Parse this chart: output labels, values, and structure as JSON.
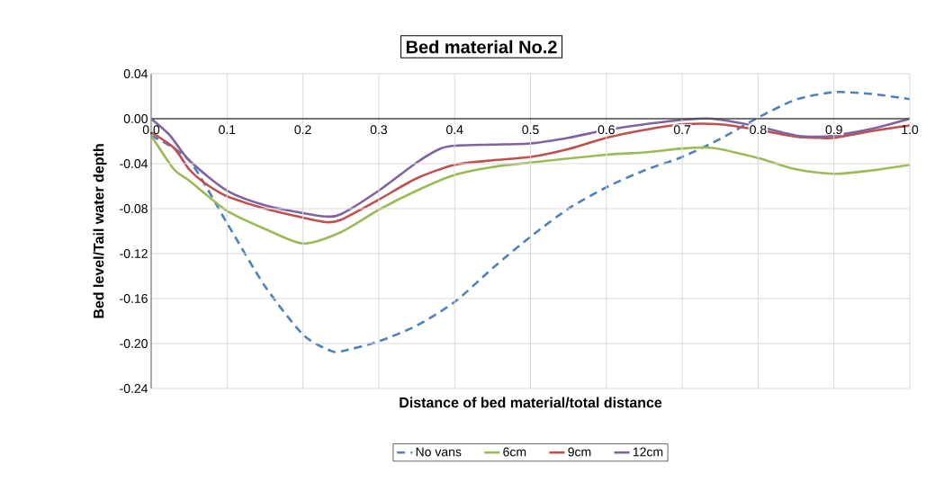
{
  "chart_data": {
    "type": "line",
    "title": "Bed material No.2",
    "xlabel": "Distance of bed material/total distance",
    "ylabel": "Bed level/Tail water depth",
    "xlim": [
      0,
      1
    ],
    "ylim": [
      -0.24,
      0.04
    ],
    "xticks": [
      {
        "value": 0,
        "label": "0.0"
      },
      0.1,
      0.2,
      0.3,
      0.4,
      0.5,
      0.6,
      0.7,
      0.8,
      0.9,
      {
        "value": 1,
        "label": "1.0"
      }
    ],
    "yticks": [
      {
        "value": 0.04,
        "label": "0.04"
      },
      {
        "value": 0,
        "label": "0.00"
      },
      {
        "value": -0.04,
        "label": "-0.04"
      },
      {
        "value": -0.08,
        "label": "-0.08"
      },
      {
        "value": -0.12,
        "label": "-0.12"
      },
      {
        "value": -0.16,
        "label": "-0.16"
      },
      {
        "value": -0.2,
        "label": "-0.20"
      },
      {
        "value": -0.24,
        "label": "-0.24"
      }
    ],
    "grid": true,
    "legend": "bottom",
    "series": [
      {
        "name": "No vans",
        "color": "#4f81bd",
        "line_style": "dashed",
        "x": [
          0,
          0.05,
          0.1,
          0.15,
          0.2,
          0.235,
          0.25,
          0.3,
          0.35,
          0.4,
          0.45,
          0.5,
          0.55,
          0.6,
          0.65,
          0.7,
          0.75,
          0.8,
          0.85,
          0.9,
          0.95,
          1.0
        ],
        "values": [
          -0.015,
          -0.037,
          -0.093,
          -0.149,
          -0.192,
          -0.206,
          -0.207,
          -0.198,
          -0.184,
          -0.163,
          -0.133,
          -0.105,
          -0.08,
          -0.061,
          -0.046,
          -0.034,
          -0.018,
          0.001,
          0.017,
          0.0236,
          0.022,
          0.0174
        ]
      },
      {
        "name": "6cm",
        "color": "#9bbb59",
        "line_style": "solid",
        "x": [
          0,
          0.03,
          0.05,
          0.1,
          0.15,
          0.2,
          0.25,
          0.3,
          0.35,
          0.4,
          0.45,
          0.5,
          0.6,
          0.65,
          0.7,
          0.74,
          0.8,
          0.85,
          0.9,
          0.95,
          1.0
        ],
        "values": [
          -0.015,
          -0.045,
          -0.055,
          -0.082,
          -0.098,
          -0.111,
          -0.101,
          -0.081,
          -0.064,
          -0.05,
          -0.043,
          -0.039,
          -0.032,
          -0.03,
          -0.0265,
          -0.026,
          -0.035,
          -0.045,
          -0.049,
          -0.046,
          -0.041
        ]
      },
      {
        "name": "9cm",
        "color": "#c0504d",
        "line_style": "solid",
        "x": [
          0,
          0.03,
          0.05,
          0.07,
          0.1,
          0.15,
          0.2,
          0.23,
          0.25,
          0.3,
          0.35,
          0.4,
          0.45,
          0.5,
          0.55,
          0.6,
          0.65,
          0.7,
          0.75,
          0.8,
          0.85,
          0.88,
          0.9,
          0.95,
          1.0
        ],
        "values": [
          -0.012,
          -0.026,
          -0.045,
          -0.057,
          -0.069,
          -0.08,
          -0.088,
          -0.092,
          -0.09,
          -0.072,
          -0.053,
          -0.041,
          -0.037,
          -0.034,
          -0.027,
          -0.017,
          -0.01,
          -0.005,
          -0.005,
          -0.01,
          -0.016,
          -0.017,
          -0.017,
          -0.011,
          -0.006
        ]
      },
      {
        "name": "12cm",
        "color": "#8064a2",
        "line_style": "solid",
        "x": [
          0,
          0.025,
          0.05,
          0.1,
          0.15,
          0.2,
          0.23,
          0.25,
          0.3,
          0.35,
          0.38,
          0.4,
          0.45,
          0.5,
          0.55,
          0.6,
          0.65,
          0.7,
          0.74,
          0.8,
          0.85,
          0.88,
          0.9,
          0.95,
          1.0
        ],
        "values": [
          0,
          -0.015,
          -0.037,
          -0.064,
          -0.077,
          -0.084,
          -0.087,
          -0.085,
          -0.064,
          -0.039,
          -0.027,
          -0.024,
          -0.023,
          -0.022,
          -0.017,
          -0.01,
          -0.005,
          -0.001,
          0,
          -0.007,
          -0.015,
          -0.016,
          -0.015,
          -0.009,
          0
        ]
      }
    ]
  }
}
